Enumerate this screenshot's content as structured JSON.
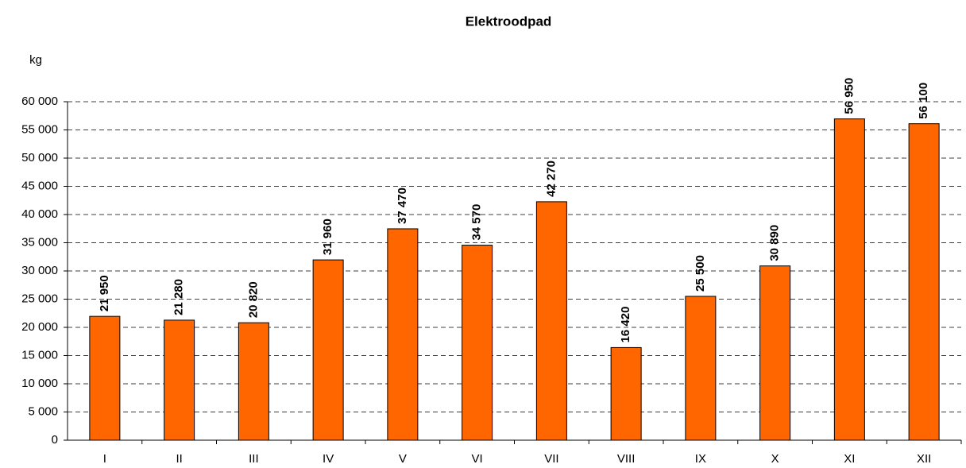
{
  "chart_data": {
    "type": "bar",
    "title": "Elektroodpad",
    "y_label": "kg",
    "categories": [
      "I",
      "II",
      "III",
      "IV",
      "V",
      "VI",
      "VII",
      "VIII",
      "IX",
      "X",
      "XI",
      "XII"
    ],
    "values": [
      21950,
      21280,
      20820,
      31960,
      37470,
      34570,
      42270,
      16420,
      25500,
      30890,
      56950,
      56100
    ],
    "value_labels": [
      "21 950",
      "21 280",
      "20 820",
      "31 960",
      "37 470",
      "34 570",
      "42 270",
      "16 420",
      "25 500",
      "30 890",
      "56 950",
      "56 100"
    ],
    "color": "#ff6600",
    "ylim": [
      0,
      60000
    ],
    "yticks": [
      0,
      {
        "value": 5000,
        "label": "5 000"
      },
      {
        "value": 10000,
        "label": "10 000"
      },
      {
        "value": 15000,
        "label": "15 000"
      },
      {
        "value": 20000,
        "label": "20 000"
      },
      {
        "value": 25000,
        "label": "25 000"
      },
      {
        "value": 30000,
        "label": "30 000"
      },
      {
        "value": 35000,
        "label": "35 000"
      },
      {
        "value": 40000,
        "label": "40 000"
      },
      {
        "value": 45000,
        "label": "45 000"
      },
      {
        "value": 50000,
        "label": "50 000"
      },
      {
        "value": 55000,
        "label": "55 000"
      },
      {
        "value": 60000,
        "label": "60 000"
      }
    ],
    "grid": true
  }
}
